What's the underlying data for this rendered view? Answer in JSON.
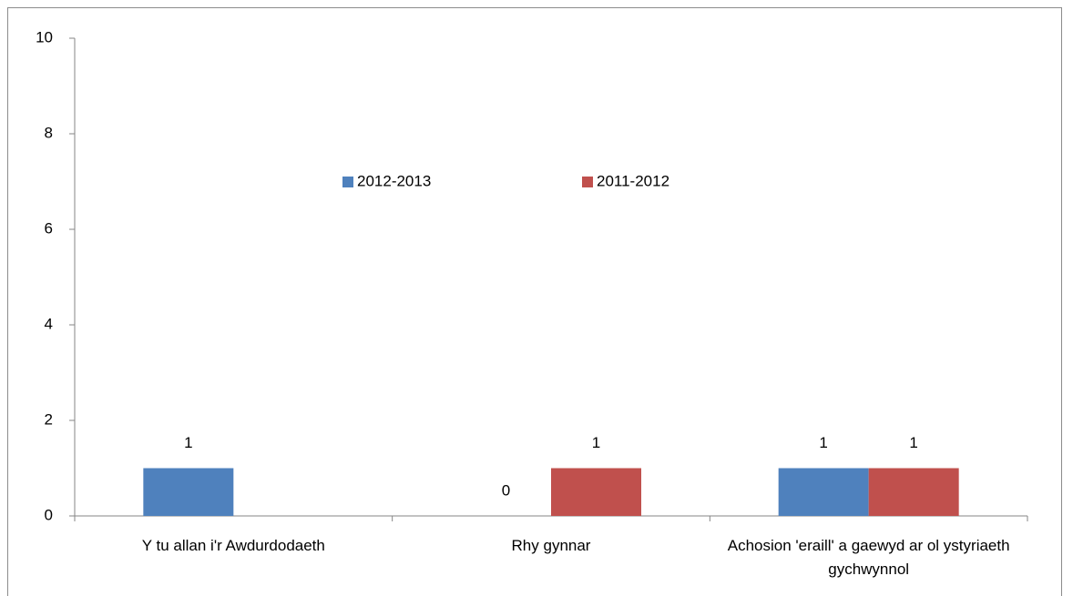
{
  "chart_data": {
    "type": "bar",
    "categories": [
      "Y tu allan i'r Awdurdodaeth",
      "Rhy gynnar",
      "Achosion 'eraill' a gaewyd ar ol ystyriaeth gychwynnol"
    ],
    "series": [
      {
        "name": "2012-2013",
        "color": "#4f81bd",
        "values": [
          1,
          0,
          1
        ]
      },
      {
        "name": "2011-2012",
        "color": "#c0504d",
        "values": [
          null,
          1,
          1
        ]
      }
    ],
    "ylim": [
      0,
      10
    ],
    "yticks": [
      0,
      2,
      4,
      6,
      8,
      10
    ],
    "grid": false,
    "legend": "top",
    "data_labels": true
  }
}
